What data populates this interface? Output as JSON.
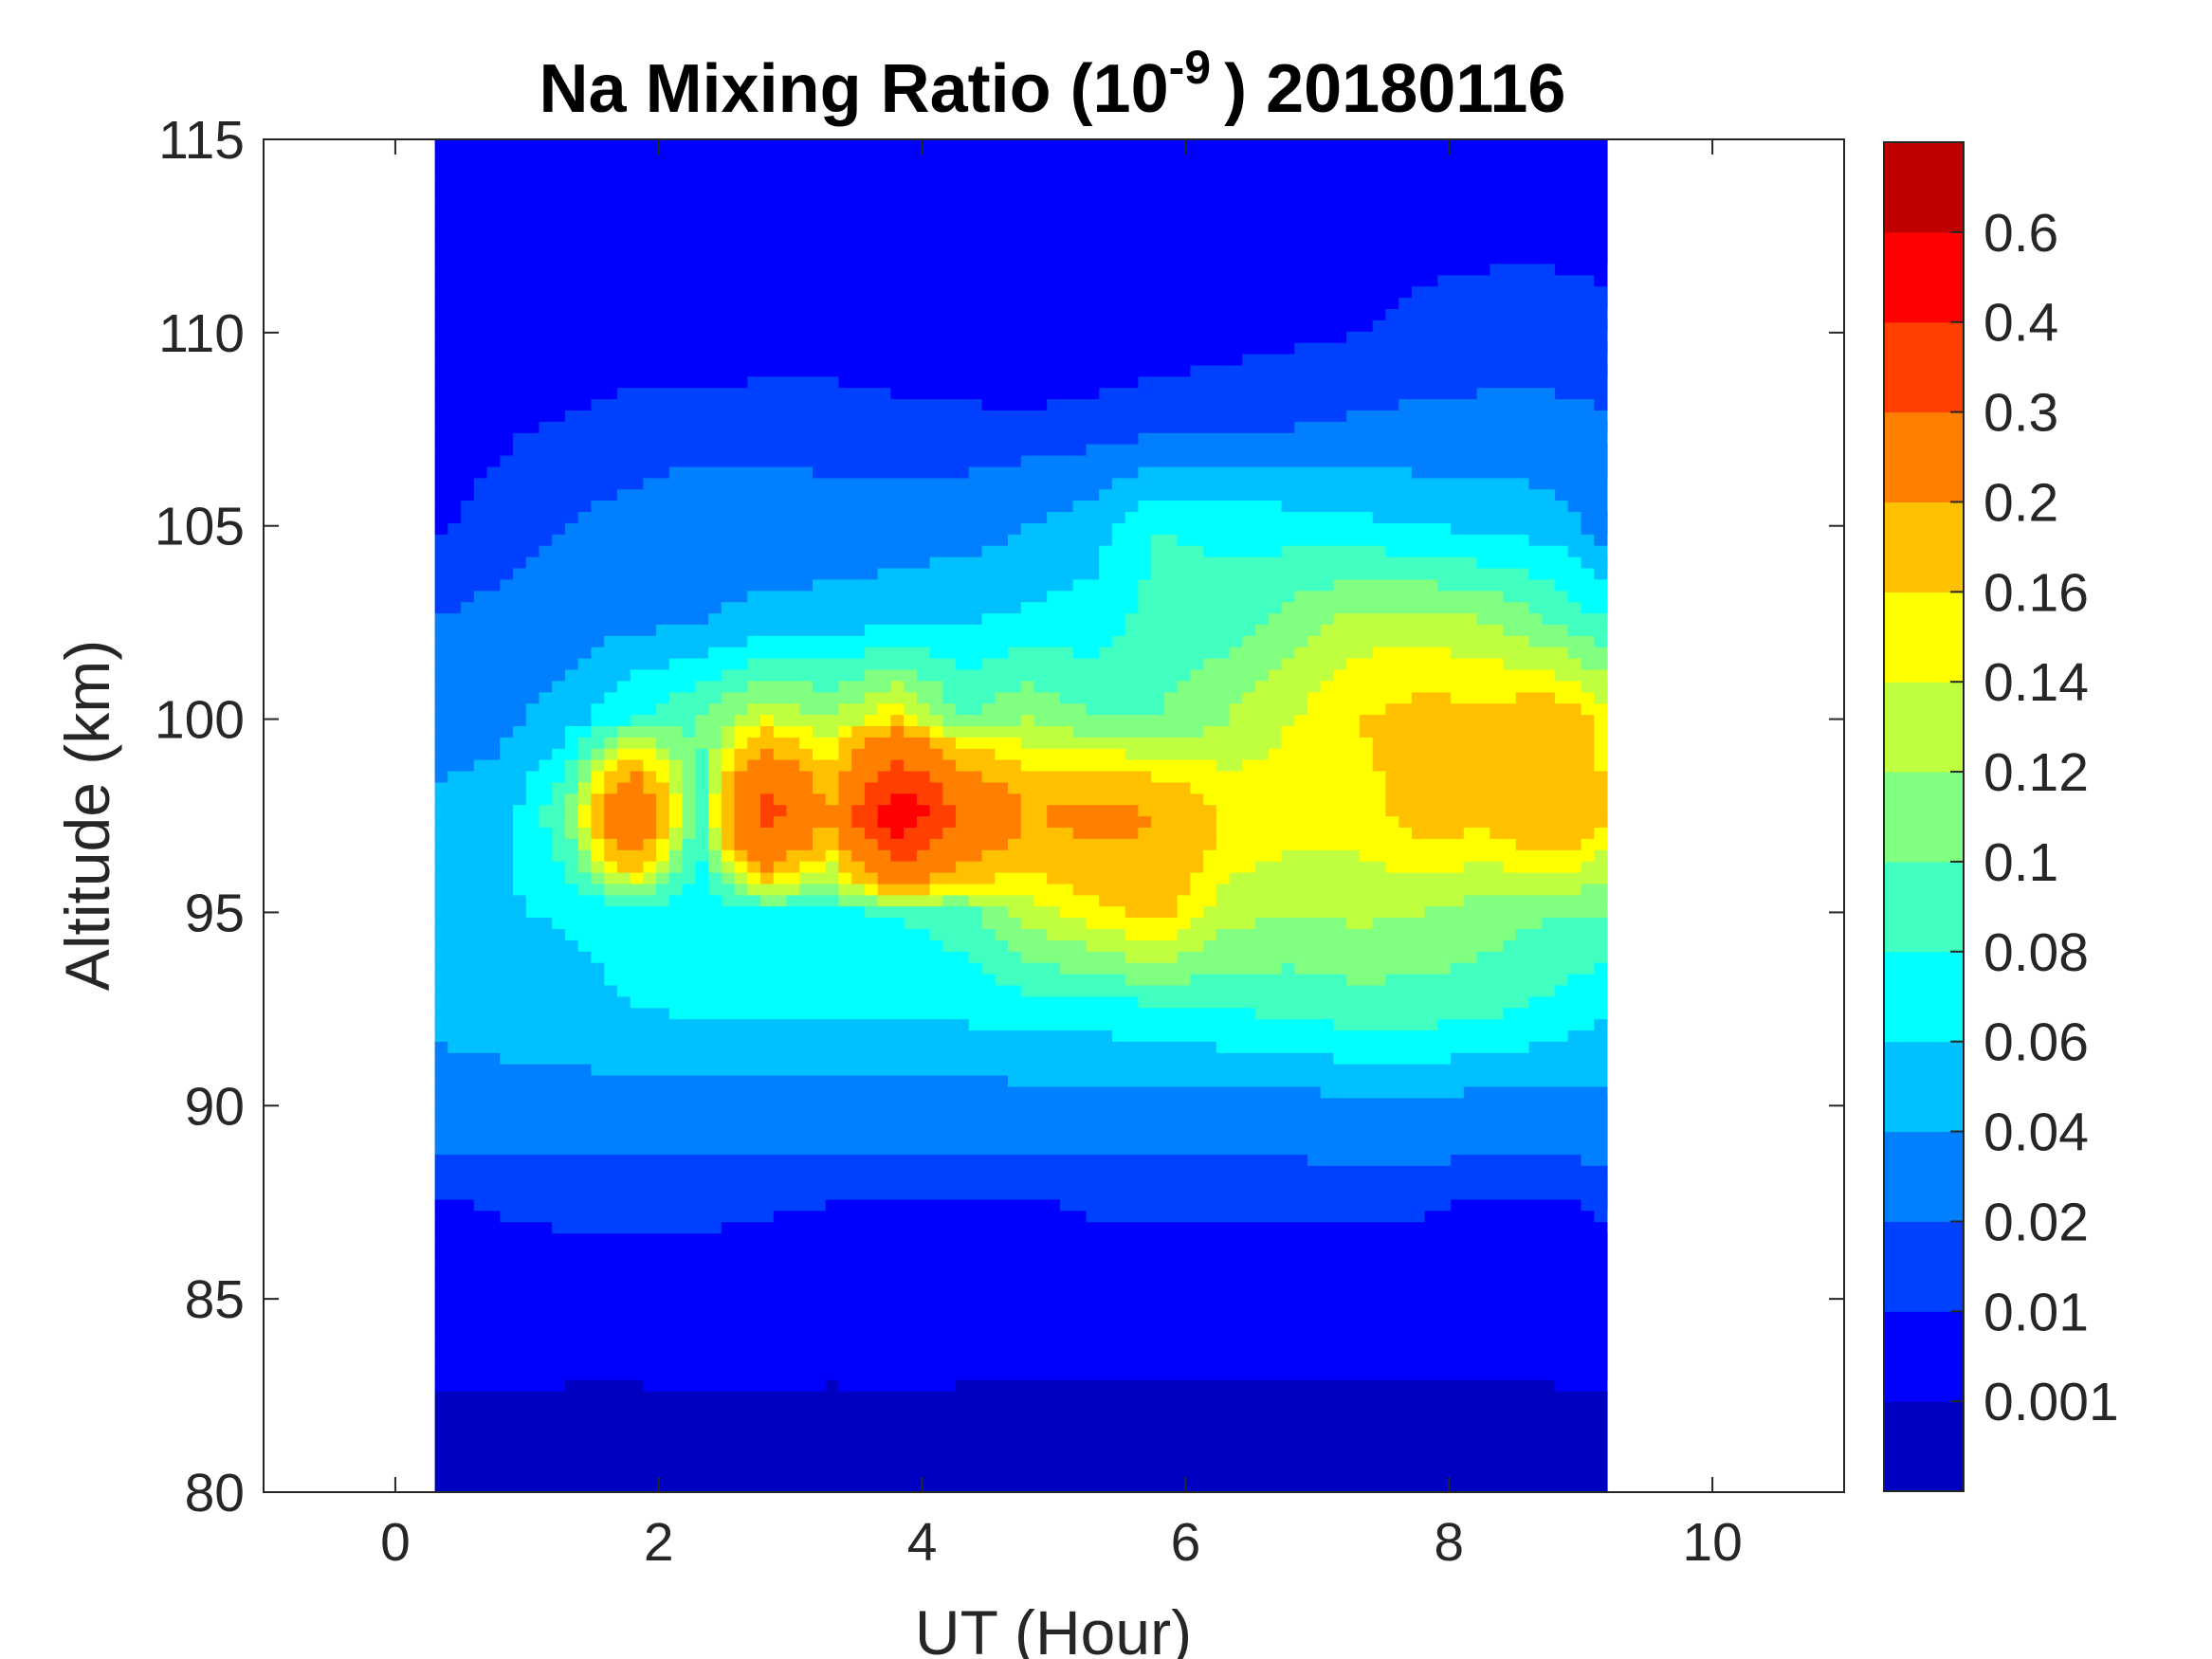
{
  "chart_data": {
    "type": "heatmap",
    "subtype": "filled-contour",
    "title": "Na Mixing Ratio (10",
    "title_exponent": "-9",
    "title_suffix": ") 20180116",
    "xlabel": "UT (Hour)",
    "ylabel": "Altitude (km)",
    "xlim": [
      -1,
      11
    ],
    "ylim": [
      80,
      115
    ],
    "xticks": [
      0,
      2,
      4,
      6,
      8,
      10
    ],
    "yticks": [
      80,
      85,
      90,
      95,
      100,
      105,
      110,
      115
    ],
    "x": [
      0.3,
      0.8,
      1.3,
      1.8,
      2.3,
      2.8,
      3.3,
      3.8,
      4.3,
      4.8,
      5.3,
      5.8,
      6.3,
      6.8,
      7.3,
      7.8,
      8.3,
      8.8,
      9.2
    ],
    "y": [
      80,
      82.5,
      85,
      87.5,
      90,
      92.5,
      95,
      97.5,
      100,
      102.5,
      105,
      107.5,
      110,
      112.5,
      115
    ],
    "z": [
      [
        0.0005,
        0.0005,
        0.0005,
        0.0005,
        0.0005,
        0.0005,
        0.0005,
        0.0005,
        0.0005,
        0.0005,
        0.0005,
        0.0005,
        0.0005,
        0.0005,
        0.0005,
        0.0005,
        0.0005,
        0.0005,
        0.0005
      ],
      [
        0.0008,
        0.0009,
        0.0005,
        0.0005,
        0.0006,
        0.0006,
        0.0005,
        0.0005,
        0.0005,
        0.0005,
        0.0005,
        0.0005,
        0.0005,
        0.0005,
        0.0005,
        0.0005,
        0.0005,
        0.0005,
        0.0008
      ],
      [
        0.005,
        0.005,
        0.005,
        0.005,
        0.005,
        0.005,
        0.005,
        0.006,
        0.005,
        0.005,
        0.005,
        0.005,
        0.005,
        0.005,
        0.005,
        0.005,
        0.005,
        0.005,
        0.006
      ],
      [
        0.009,
        0.011,
        0.012,
        0.012,
        0.012,
        0.011,
        0.01,
        0.008,
        0.009,
        0.009,
        0.011,
        0.011,
        0.011,
        0.011,
        0.011,
        0.011,
        0.009,
        0.009,
        0.011
      ],
      [
        0.03,
        0.03,
        0.03,
        0.03,
        0.03,
        0.03,
        0.03,
        0.03,
        0.03,
        0.03,
        0.03,
        0.03,
        0.03,
        0.03,
        0.035,
        0.035,
        0.03,
        0.03,
        0.035
      ],
      [
        0.045,
        0.05,
        0.055,
        0.06,
        0.062,
        0.065,
        0.065,
        0.065,
        0.065,
        0.07,
        0.07,
        0.075,
        0.08,
        0.085,
        0.09,
        0.09,
        0.085,
        0.075,
        0.06
      ],
      [
        0.05,
        0.058,
        0.062,
        0.065,
        0.065,
        0.07,
        0.075,
        0.08,
        0.09,
        0.13,
        0.15,
        0.17,
        0.13,
        0.12,
        0.125,
        0.12,
        0.11,
        0.1,
        0.1
      ],
      [
        0.045,
        0.05,
        0.1,
        0.3,
        0.08,
        0.35,
        0.2,
        0.5,
        0.3,
        0.2,
        0.22,
        0.2,
        0.16,
        0.15,
        0.15,
        0.17,
        0.17,
        0.2,
        0.16
      ],
      [
        0.03,
        0.035,
        0.05,
        0.08,
        0.1,
        0.14,
        0.12,
        0.16,
        0.1,
        0.12,
        0.1,
        0.1,
        0.12,
        0.14,
        0.16,
        0.17,
        0.17,
        0.18,
        0.15
      ],
      [
        0.02,
        0.025,
        0.03,
        0.035,
        0.04,
        0.045,
        0.05,
        0.055,
        0.06,
        0.065,
        0.07,
        0.09,
        0.09,
        0.11,
        0.13,
        0.13,
        0.12,
        0.1,
        0.08
      ],
      [
        0.009,
        0.012,
        0.02,
        0.025,
        0.03,
        0.03,
        0.025,
        0.028,
        0.03,
        0.04,
        0.05,
        0.08,
        0.075,
        0.07,
        0.065,
        0.06,
        0.055,
        0.05,
        0.03
      ],
      [
        0.008,
        0.009,
        0.011,
        0.013,
        0.014,
        0.015,
        0.015,
        0.013,
        0.012,
        0.011,
        0.013,
        0.016,
        0.018,
        0.02,
        0.022,
        0.024,
        0.025,
        0.025,
        0.022
      ],
      [
        0.005,
        0.005,
        0.005,
        0.006,
        0.005,
        0.005,
        0.005,
        0.005,
        0.005,
        0.005,
        0.005,
        0.005,
        0.006,
        0.008,
        0.01,
        0.011,
        0.012,
        0.012,
        0.011
      ],
      [
        0.005,
        0.005,
        0.005,
        0.005,
        0.005,
        0.005,
        0.005,
        0.005,
        0.005,
        0.005,
        0.005,
        0.005,
        0.005,
        0.005,
        0.008,
        0.009,
        0.009,
        0.009,
        0.009
      ],
      [
        0.005,
        0.005,
        0.005,
        0.005,
        0.005,
        0.005,
        0.005,
        0.005,
        0.005,
        0.005,
        0.005,
        0.005,
        0.005,
        0.005,
        0.008,
        0.009,
        0.009,
        0.01,
        0.009
      ]
    ],
    "colorbar": {
      "levels": [
        0.001,
        0.01,
        0.02,
        0.04,
        0.06,
        0.08,
        0.1,
        0.12,
        0.14,
        0.16,
        0.2,
        0.3,
        0.4,
        0.6
      ],
      "tick_labels": [
        "0.001",
        "0.01",
        "0.02",
        "0.04",
        "0.06",
        "0.08",
        "0.1",
        "0.12",
        "0.14",
        "0.16",
        "0.2",
        "0.3",
        "0.4",
        "0.6"
      ],
      "colors": [
        "#0000C0",
        "#0000FF",
        "#0040FF",
        "#0080FF",
        "#00C0FF",
        "#00FFFF",
        "#40FFC0",
        "#80FF80",
        "#C0FF40",
        "#FFFF00",
        "#FFC000",
        "#FF8000",
        "#FF4000",
        "#FF0000",
        "#C00000"
      ]
    }
  }
}
